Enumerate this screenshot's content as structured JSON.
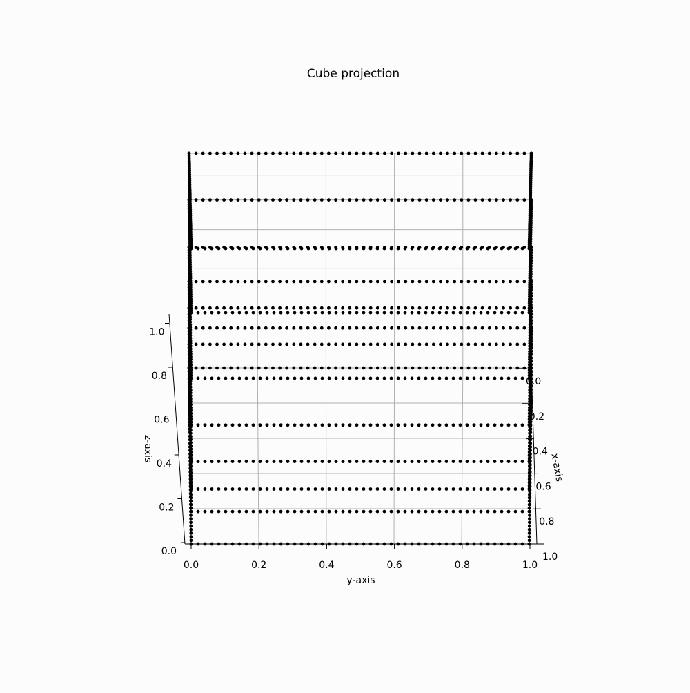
{
  "chart_data": {
    "type": "scatter3d",
    "title": "Cube projection",
    "xlabel": "x-axis",
    "ylabel": "y-axis",
    "zlabel": "z-axis",
    "xlim": [
      0.0,
      1.0
    ],
    "ylim": [
      0.0,
      1.0
    ],
    "zlim": [
      0.0,
      1.0
    ],
    "x_ticks": [
      "0.0",
      "0.2",
      "0.4",
      "0.6",
      "0.8",
      "1.0"
    ],
    "y_ticks": [
      "0.0",
      "0.2",
      "0.4",
      "0.6",
      "0.8",
      "1.0"
    ],
    "z_ticks": [
      "0.0",
      "0.2",
      "0.4",
      "0.6",
      "0.8",
      "1.0"
    ],
    "grid": true,
    "point_color": "#000000",
    "layers": [
      {
        "z": 1.0,
        "points_per_side": 50
      },
      {
        "z": 0.6,
        "points_per_side": 50
      },
      {
        "z": 0.3,
        "points_per_side": 50
      },
      {
        "z": 0.15,
        "points_per_side": 50
      },
      {
        "z": 0.07,
        "points_per_side": 50
      },
      {
        "z": 0.03,
        "points_per_side": 50
      },
      {
        "z": 0.01,
        "points_per_side": 50
      },
      {
        "z": 0.0,
        "points_per_side": 50
      }
    ]
  }
}
